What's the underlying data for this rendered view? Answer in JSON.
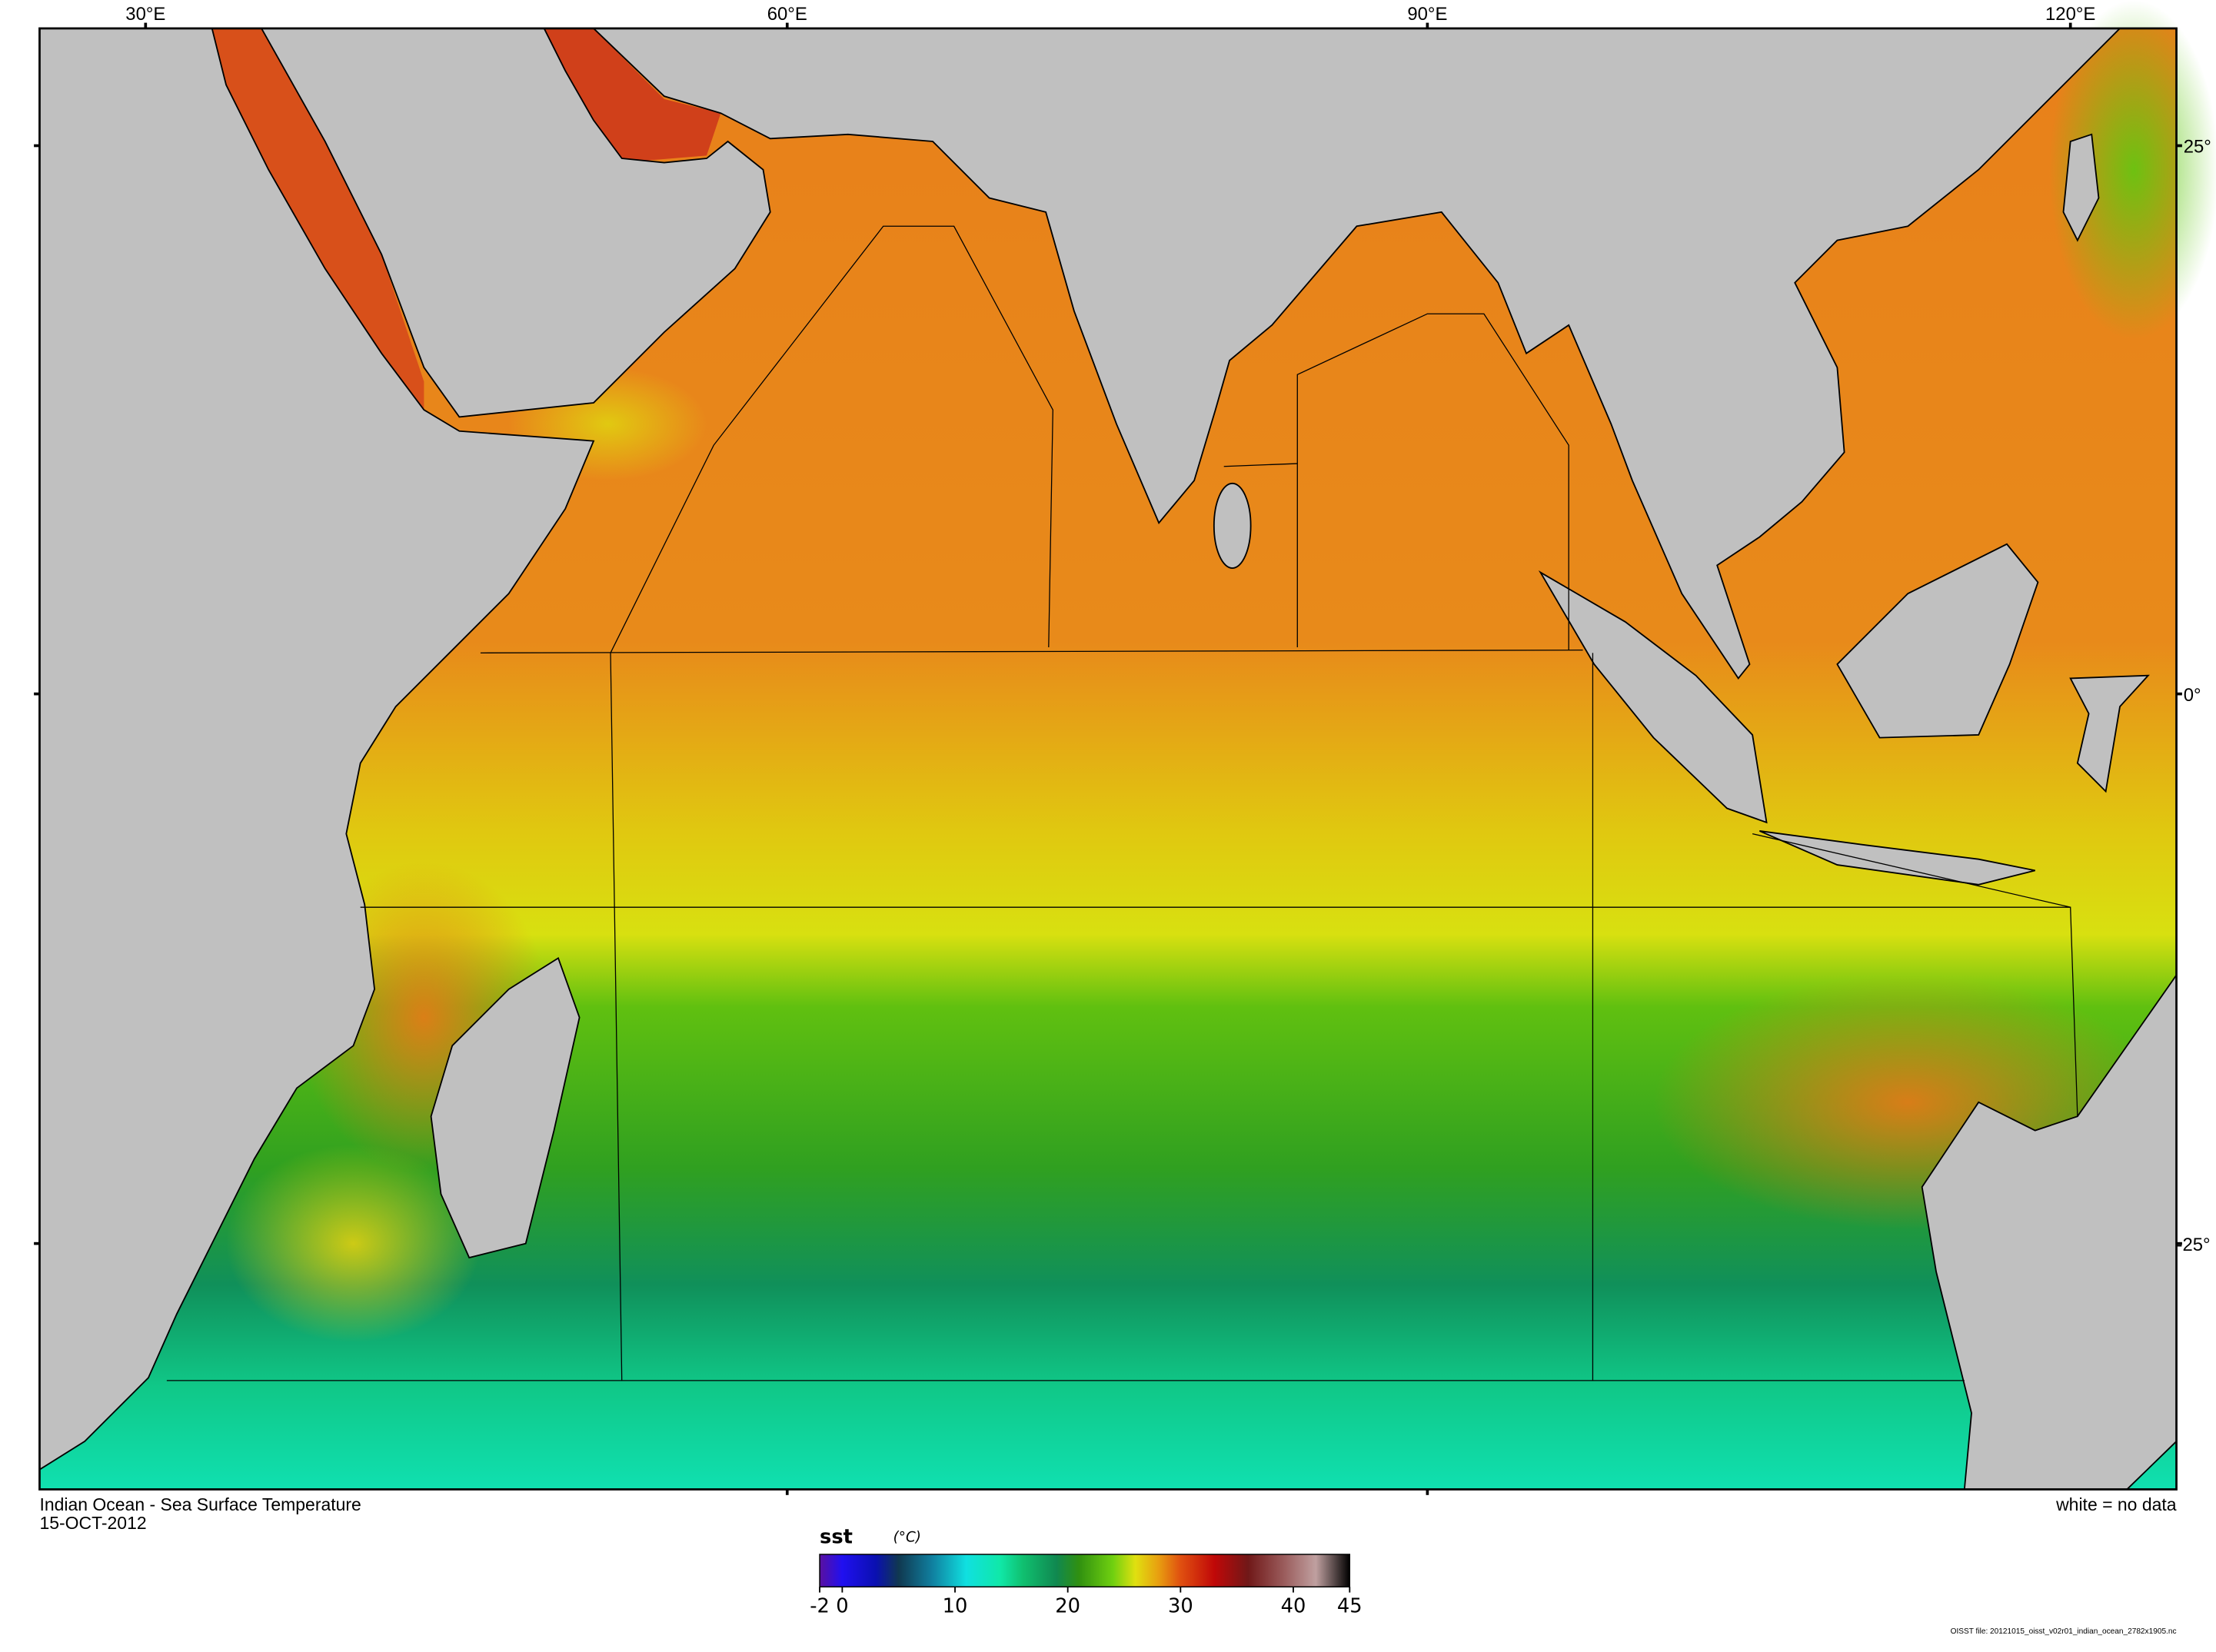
{
  "map": {
    "title": "Indian Ocean - Sea Surface Temperature",
    "date": "15-OCT-2012",
    "note": "white = no data",
    "source": "OISST file: 20121015_oisst_v02r01_indian_ocean_2782x1905.nc",
    "lon_labels": [
      "30°E",
      "60°E",
      "90°E",
      "120°E"
    ],
    "lat_labels": [
      "25°",
      "0°",
      "-25°"
    ],
    "colors": {
      "land": "#c0c0c0",
      "warm": "#e8801a",
      "hot": "#d8401a",
      "mid": "#e0e010",
      "cool": "#1a9a50",
      "cold": "#10e0b0"
    }
  },
  "colorbar": {
    "variable": "sst",
    "units": "(°C)",
    "min": -2,
    "max": 45,
    "ticks": [
      -2,
      0,
      10,
      20,
      30,
      40,
      45
    ],
    "tick_labels": [
      "-2",
      "0",
      "10",
      "20",
      "30",
      "40",
      "45"
    ],
    "stops": [
      [
        -2,
        "#5a10a0"
      ],
      [
        0,
        "#2010f0"
      ],
      [
        3,
        "#0a10b0"
      ],
      [
        5,
        "#103850"
      ],
      [
        8,
        "#1080a0"
      ],
      [
        11,
        "#10e0e0"
      ],
      [
        14,
        "#10e8a8"
      ],
      [
        16,
        "#10c070"
      ],
      [
        19,
        "#108850"
      ],
      [
        21,
        "#309010"
      ],
      [
        24,
        "#70d010"
      ],
      [
        26,
        "#e0e010"
      ],
      [
        28,
        "#e8a010"
      ],
      [
        30,
        "#e05010"
      ],
      [
        33,
        "#c00808"
      ],
      [
        36,
        "#701818"
      ],
      [
        39,
        "#985858"
      ],
      [
        42,
        "#c0a0a0"
      ],
      [
        45,
        "#000000"
      ]
    ]
  }
}
